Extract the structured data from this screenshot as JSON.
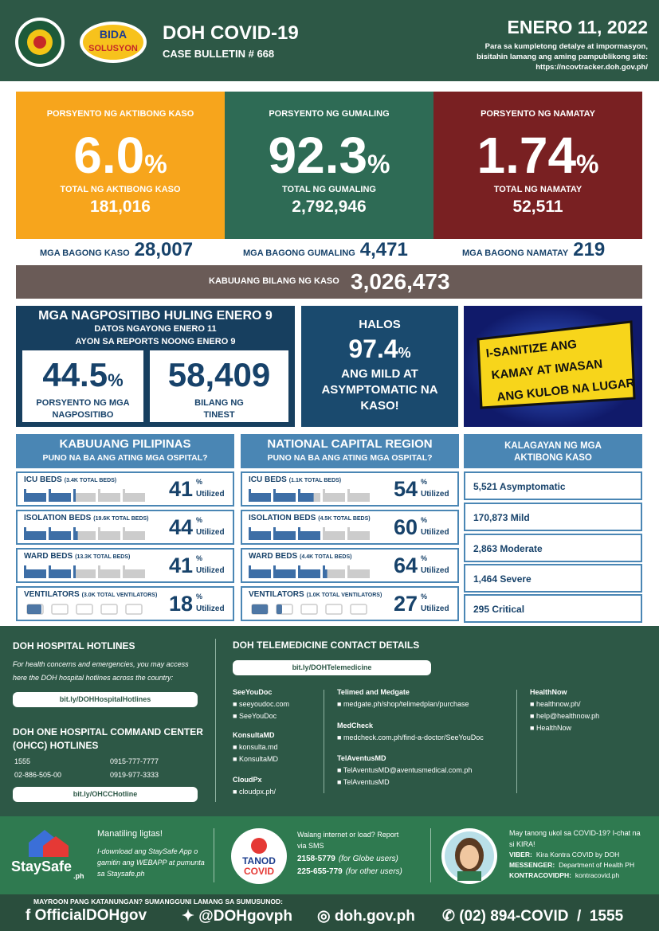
{
  "header": {
    "title": "DOH COVID-19",
    "bulletin": "CASE BULLETIN # 668",
    "date": "ENERO 11, 2022",
    "note": "Para sa kumpletong detalye at impormasyon, bisitahin lamang ang aming pampublikong site:",
    "site": "https://ncovtracker.doh.gov.ph/",
    "logo_top": "BIDA",
    "logo_bottom": "SOLUSYON"
  },
  "stats": [
    {
      "label": "PORSYENTO NG AKTIBONG KASO",
      "percent": "6.0",
      "unit": "%",
      "total_label": "TOTAL NG AKTIBONG KASO",
      "total": "181,016",
      "new_label": "MGA BAGONG KASO",
      "new": "28,007"
    },
    {
      "label": "PORSYENTO NG GUMALING",
      "percent": "92.3",
      "unit": "%",
      "total_label": "TOTAL NG GUMALING",
      "total": "2,792,946",
      "new_label": "MGA BAGONG GUMALING",
      "new": "4,471"
    },
    {
      "label": "PORSYENTO NG NAMATAY",
      "percent": "1.74",
      "unit": "%",
      "total_label": "TOTAL NG NAMATAY",
      "total": "52,511",
      "new_label": "MGA BAGONG NAMATAY",
      "new": "219"
    }
  ],
  "total": {
    "label": "KABUUANG BILANG NG KASO",
    "value": "3,026,473"
  },
  "positivity": {
    "title": "MGA NAGPOSITIBO HULING ENERO 9",
    "sub1": "DATOS NGAYONG ENERO 11",
    "sub2": "AYON SA REPORTS NOONG ENERO 9",
    "rate": "44.5",
    "unit": "%",
    "rate_label": "PORSYENTO NG MGA NAGPOSITIBO",
    "tests": "58,409",
    "tests_label": "BILANG NG TINEST"
  },
  "mild": {
    "top": "HALOS",
    "value": "97.4",
    "unit": "%",
    "text": "ANG MILD AT ASYMPTOMATIC NA KASO!"
  },
  "banner": [
    "I-SANITIZE ANG",
    "KAMAY AT IWASAN",
    "ANG KULOB NA LUGAR"
  ],
  "capacity": [
    {
      "title": "KABUUANG PILIPINAS",
      "subtitle": "PUNO NA BA ANG ATING MGA OSPITAL?",
      "rows": [
        {
          "name": "ICU BEDS",
          "detail": "(3.4K TOTAL BEDS)",
          "value": 41,
          "unit": "%",
          "status": "Utilized"
        },
        {
          "name": "ISOLATION BEDS",
          "detail": "(19.6K TOTAL BEDS)",
          "value": 44,
          "unit": "%",
          "status": "Utilized"
        },
        {
          "name": "WARD BEDS",
          "detail": "(13.3K TOTAL BEDS)",
          "value": 41,
          "unit": "%",
          "status": "Utilized"
        },
        {
          "name": "VENTILATORS",
          "detail": "(3.0K TOTAL VENTILATORS)",
          "value": 18,
          "unit": "%",
          "status": "Utilized"
        }
      ]
    },
    {
      "title": "NATIONAL CAPITAL REGION",
      "subtitle": "PUNO NA BA ANG ATING MGA OSPITAL?",
      "rows": [
        {
          "name": "ICU BEDS",
          "detail": "(1.1K TOTAL BEDS)",
          "value": 54,
          "unit": "%",
          "status": "Utilized"
        },
        {
          "name": "ISOLATION BEDS",
          "detail": "(4.5K TOTAL BEDS)",
          "value": 60,
          "unit": "%",
          "status": "Utilized"
        },
        {
          "name": "WARD BEDS",
          "detail": "(4.4K TOTAL BEDS)",
          "value": 64,
          "unit": "%",
          "status": "Utilized"
        },
        {
          "name": "VENTILATORS",
          "detail": "(1.0K TOTAL VENTILATORS)",
          "value": 27,
          "unit": "%",
          "status": "Utilized"
        }
      ]
    }
  ],
  "active": {
    "title": "KALAGAYAN NG MGA AKTIBONG KASO",
    "items": [
      "5,521 Asymptomatic",
      "170,873 Mild",
      "2,863 Moderate",
      "1,464 Severe",
      "295 Critical"
    ]
  },
  "hotlines": {
    "title": "DOH HOSPITAL HOTLINES",
    "text": "For health concerns and emergencies, you may access here the DOH hospital hotlines across the country:",
    "link": "bit.ly/DOHHospitalHotlines",
    "ohcc_title": "DOH ONE HOSPITAL COMMAND CENTER (OHCC) HOTLINES",
    "numbers": [
      "1555",
      "0915-777-7777",
      "02-886-505-00",
      "0919-977-3333"
    ],
    "ohcc_link": "bit.ly/OHCCHotline"
  },
  "telemedicine": {
    "title": "DOH TELEMEDICINE CONTACT DETAILS",
    "link": "bit.ly/DOHTelemedicine",
    "providers": [
      {
        "name": "SeeYouDoc",
        "contacts": [
          "seeyoudoc.com",
          "SeeYouDoc"
        ]
      },
      {
        "name": "KonsultaMD",
        "contacts": [
          "konsulta.md",
          "KonsultaMD"
        ]
      },
      {
        "name": "CloudPx",
        "contacts": [
          "cloudpx.ph/"
        ]
      },
      {
        "name": "Telimed and Medgate",
        "contacts": [
          "medgate.ph/shop/telimedplan/purchase"
        ]
      },
      {
        "name": "MedCheck",
        "contacts": [
          "medcheck.com.ph/find-a-doctor/SeeYouDoc"
        ]
      },
      {
        "name": "TelAventusMD",
        "contacts": [
          "TelAventusMD@aventusmedical.com.ph",
          "TelAventusMD"
        ]
      },
      {
        "name": "HealthNow",
        "contacts": [
          "healthnow.ph/",
          "help@healthnow.ph",
          "HealthNow"
        ]
      }
    ]
  },
  "staysafe": {
    "logo": "StaySafe",
    "logo_sub": ".ph",
    "title": "Manatiling ligtas!",
    "text": "I-download ang StaySafe App o gamitin ang WEBAPP at pumunta sa Staysafe.ph"
  },
  "tanod": {
    "logo_top": "TANOD",
    "logo_bottom": "COVID",
    "text": "Walang internet or load? Report via SMS",
    "lines": [
      {
        "number": "2158-5779",
        "note": "(for Globe users)"
      },
      {
        "number": "225-655-779",
        "note": "(for other users)"
      }
    ]
  },
  "kira": {
    "text": "May tanong ukol sa COVID-19? I-chat na si KIRA!",
    "lines": [
      {
        "label": "VIBER:",
        "value": "Kira Kontra COVID by DOH"
      },
      {
        "label": "MESSENGER:",
        "value": "Department of Health PH"
      },
      {
        "label": "KONTRACOVIDPH:",
        "value": "kontracovid.ph"
      }
    ]
  },
  "footer": {
    "text": "MAYROON PANG KATANUNGAN? SUMANGGUNI LAMANG SA SUMUSUNOD:",
    "facebook": "OfficialDOHgov",
    "twitter": "@DOHgovph",
    "web": "doh.gov.ph",
    "phone": "(02) 894-COVID  /  1555"
  }
}
